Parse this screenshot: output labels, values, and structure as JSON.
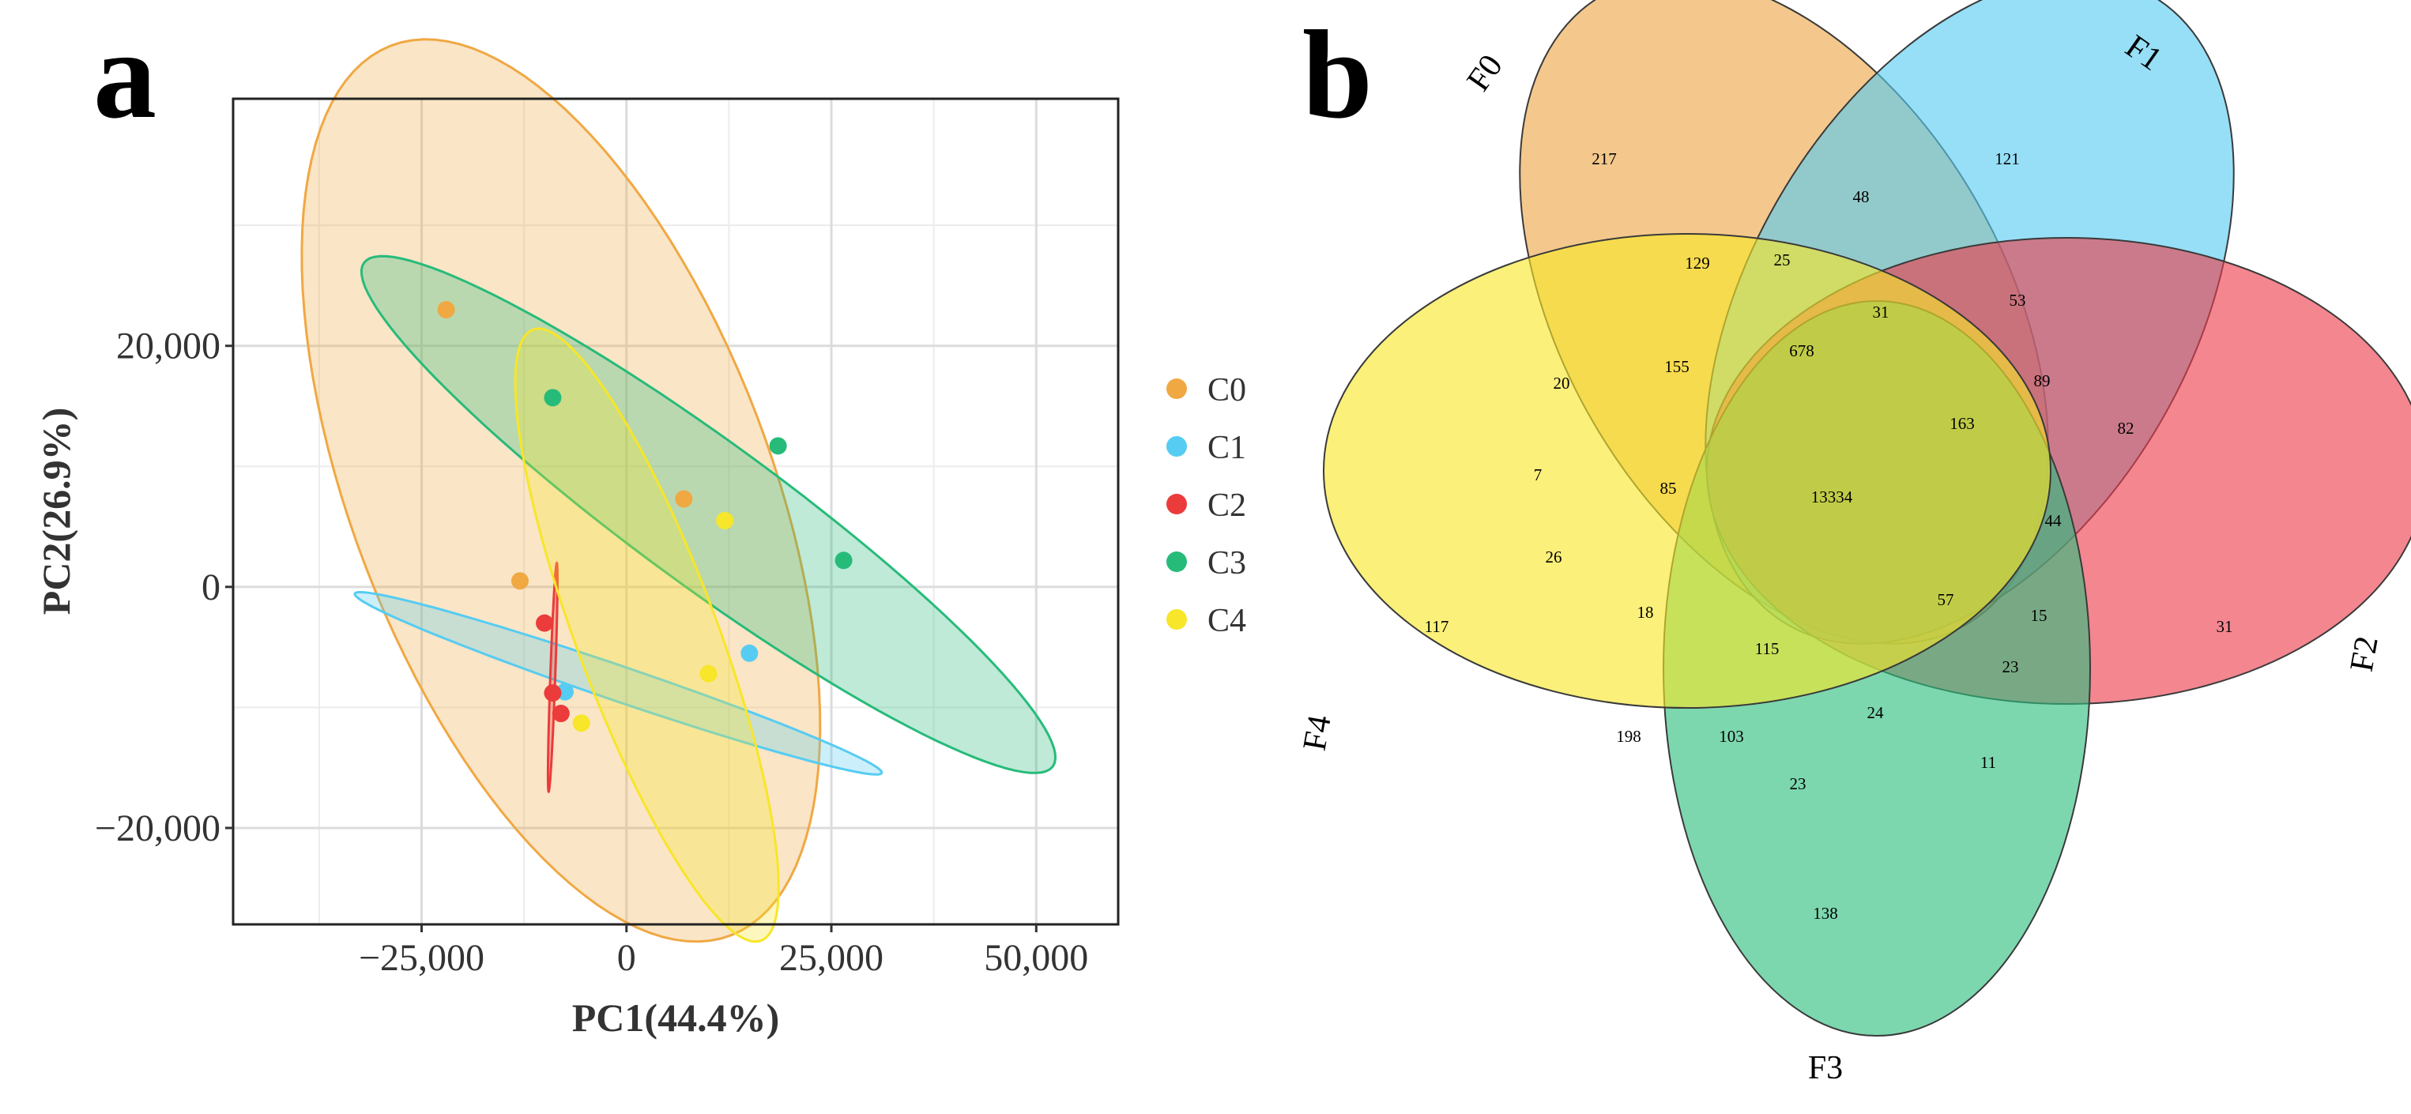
{
  "panel_a_label": "a",
  "panel_b_label": "b",
  "chart_data": [
    {
      "type": "scatter",
      "title": "",
      "xlabel": "PC1(44.4%)",
      "ylabel": "PC2(26.9%)",
      "xlim": [
        -48000,
        60000
      ],
      "ylim": [
        -28000,
        40500
      ],
      "xticks": [
        -25000,
        0,
        25000,
        50000
      ],
      "yticks": [
        -20000,
        0,
        20000
      ],
      "xtick_labels": [
        "−25,000",
        "0",
        "25,000",
        "50,000"
      ],
      "ytick_labels": [
        "−20,000",
        "0",
        "20,000"
      ],
      "grid": true,
      "legend_placement": "right",
      "series": [
        {
          "name": "C0",
          "color": "#F0A843",
          "points": [
            [
              -22000,
              23000
            ],
            [
              -13000,
              500
            ],
            [
              7000,
              7300
            ]
          ],
          "ellipse": {
            "cx": -8000,
            "cy": 8000,
            "rx": 43000,
            "ry": 23500,
            "angle": -54
          }
        },
        {
          "name": "C1",
          "color": "#56CCF2",
          "points": [
            [
              -7500,
              -8700
            ],
            [
              15000,
              -5500
            ]
          ],
          "ellipse": {
            "cx": -1000,
            "cy": -8000,
            "rx": 33000,
            "ry": 1500,
            "angle": -13
          }
        },
        {
          "name": "C2",
          "color": "#EB3B3B",
          "points": [
            [
              -10000,
              -3000
            ],
            [
              -9000,
              -8800
            ],
            [
              -8000,
              -10500
            ]
          ],
          "ellipse": {
            "cx": -9000,
            "cy": -7500,
            "rx": 300,
            "ry": 9500,
            "angle": -3
          }
        },
        {
          "name": "C3",
          "color": "#27BB7A",
          "points": [
            [
              -9000,
              15700
            ],
            [
              18500,
              11700
            ],
            [
              26500,
              2200
            ]
          ],
          "ellipse": {
            "cx": 10000,
            "cy": 6000,
            "rx": 47000,
            "ry": 6600,
            "angle": -26
          }
        },
        {
          "name": "C4",
          "color": "#F7E629",
          "points": [
            [
              12000,
              5500
            ],
            [
              10000,
              -7200
            ],
            [
              -5500,
              -11300
            ]
          ],
          "ellipse": {
            "cx": 2500,
            "cy": -4000,
            "rx": 29000,
            "ry": 8000,
            "angle": -60
          }
        }
      ]
    },
    {
      "type": "venn",
      "sets": [
        {
          "name": "F0",
          "color": "#EDA646"
        },
        {
          "name": "F1",
          "color": "#56CCF2"
        },
        {
          "name": "F2",
          "color": "#EB3B4A"
        },
        {
          "name": "F3",
          "color": "#2BBF7E"
        },
        {
          "name": "F4",
          "color": "#F7E629"
        }
      ],
      "regions": [
        {
          "sets": "F0",
          "value": 217
        },
        {
          "sets": "F1",
          "value": 121
        },
        {
          "sets": "F2",
          "value": 31
        },
        {
          "sets": "F3",
          "value": 138
        },
        {
          "sets": "F4",
          "value": 117
        },
        {
          "sets": "F0&F1",
          "value": 48
        },
        {
          "sets": "F0&F3",
          "value": 129
        },
        {
          "sets": "F0&F1&F3",
          "value": 25
        },
        {
          "sets": "a",
          "value": 31
        },
        {
          "sets": "b",
          "value": 53
        },
        {
          "sets": "c",
          "value": 155
        },
        {
          "sets": "d",
          "value": 678
        },
        {
          "sets": "e",
          "value": 20
        },
        {
          "sets": "f",
          "value": 163
        },
        {
          "sets": "g",
          "value": 89
        },
        {
          "sets": "h",
          "value": 82
        },
        {
          "sets": "i",
          "value": 7
        },
        {
          "sets": "j",
          "value": 85
        },
        {
          "sets": "all",
          "value": 13334
        },
        {
          "sets": "k",
          "value": 44
        },
        {
          "sets": "l",
          "value": 26
        },
        {
          "sets": "m",
          "value": 57
        },
        {
          "sets": "n",
          "value": 18
        },
        {
          "sets": "o",
          "value": 15
        },
        {
          "sets": "p",
          "value": 115
        },
        {
          "sets": "q",
          "value": 23
        },
        {
          "sets": "r",
          "value": 24
        },
        {
          "sets": "s",
          "value": 198
        },
        {
          "sets": "t",
          "value": 103
        },
        {
          "sets": "u",
          "value": 11
        },
        {
          "sets": "v",
          "value": 23
        }
      ]
    }
  ]
}
